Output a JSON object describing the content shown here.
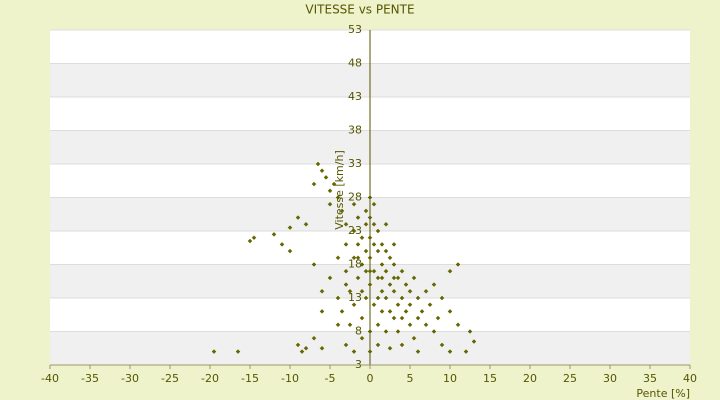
{
  "chart_data": {
    "type": "scatter",
    "title": "VITESSE vs PENTE",
    "x_label": "Pente [%]",
    "y_label": "Vitesse [km/h]",
    "color": "#666600",
    "grid": true,
    "xlim": [
      -40,
      40
    ],
    "xticks": [
      -40,
      -35,
      -30,
      -25,
      -20,
      -15,
      -10,
      -5,
      0,
      5,
      10,
      15,
      20,
      25,
      30,
      35,
      40
    ],
    "ylim": [
      3,
      53
    ],
    "yticks": [
      3,
      8,
      13,
      18,
      23,
      28,
      33,
      38,
      43,
      48,
      53
    ],
    "x": [
      -19.5,
      -16.5,
      -15,
      -14.5,
      -12,
      -11,
      -10,
      -10,
      -9,
      -9,
      -8.5,
      -8,
      -7,
      -7,
      -6.5,
      -6,
      -6,
      -6,
      -5.5,
      -5,
      -5,
      -4.5,
      -4,
      -4,
      -3.5,
      -3,
      -3,
      -2,
      -8,
      -7,
      -6,
      -5,
      -4,
      -4,
      -3.5,
      -3,
      -3,
      -2.5,
      -2.5,
      -2,
      -2,
      -2,
      -1.5,
      -1.5,
      -1.5,
      -1,
      -1,
      -1,
      -1,
      -0.5,
      -0.5,
      -0.5,
      -0.5,
      0,
      0,
      0,
      0,
      0,
      0,
      0,
      0.5,
      0.5,
      0.5,
      0.5,
      1,
      1,
      1,
      1,
      1,
      1.5,
      1.5,
      1.5,
      1.5,
      2,
      2,
      2,
      2,
      2,
      2.5,
      2.5,
      2.5,
      3,
      3,
      3,
      3,
      3.5,
      3.5,
      3.5,
      4,
      4,
      4,
      4,
      4.5,
      4.5,
      5,
      5,
      5,
      5.5,
      5.5,
      6,
      6,
      6,
      6.5,
      7,
      7,
      7.5,
      8,
      8,
      8.5,
      9,
      9,
      10,
      10,
      10,
      11,
      11,
      12,
      12.5,
      13,
      -1,
      -2,
      1,
      2.5,
      -0.5,
      0.5,
      -3,
      3,
      -1.5,
      1.5,
      0
    ],
    "values": [
      5,
      5,
      21.5,
      22,
      22.5,
      21,
      23.5,
      20,
      25,
      6,
      5,
      5.5,
      7,
      30,
      33,
      32,
      11,
      5.5,
      31,
      29,
      27,
      30,
      28,
      9,
      26,
      6,
      24,
      27,
      24,
      18,
      14,
      16,
      19,
      13,
      11,
      17,
      21,
      14,
      9,
      19,
      23,
      12,
      16,
      21,
      25,
      14,
      18,
      22,
      10,
      20,
      17,
      24,
      13,
      5,
      8,
      15,
      19,
      22,
      25,
      28,
      21,
      17,
      12,
      24,
      20,
      16,
      13,
      9,
      23,
      18,
      14,
      21,
      11,
      17,
      20,
      13,
      8,
      24,
      15,
      19,
      11,
      18,
      14,
      10,
      21,
      16,
      12,
      8,
      17,
      13,
      10,
      6,
      15,
      11,
      14,
      9,
      12,
      16,
      7,
      13,
      10,
      5,
      11,
      14,
      9,
      12,
      8,
      15,
      10,
      13,
      6,
      17,
      11,
      5,
      18,
      9,
      5,
      8,
      6.5,
      7,
      5,
      6,
      5.5,
      26,
      27,
      15,
      16,
      19,
      16,
      17
    ]
  }
}
